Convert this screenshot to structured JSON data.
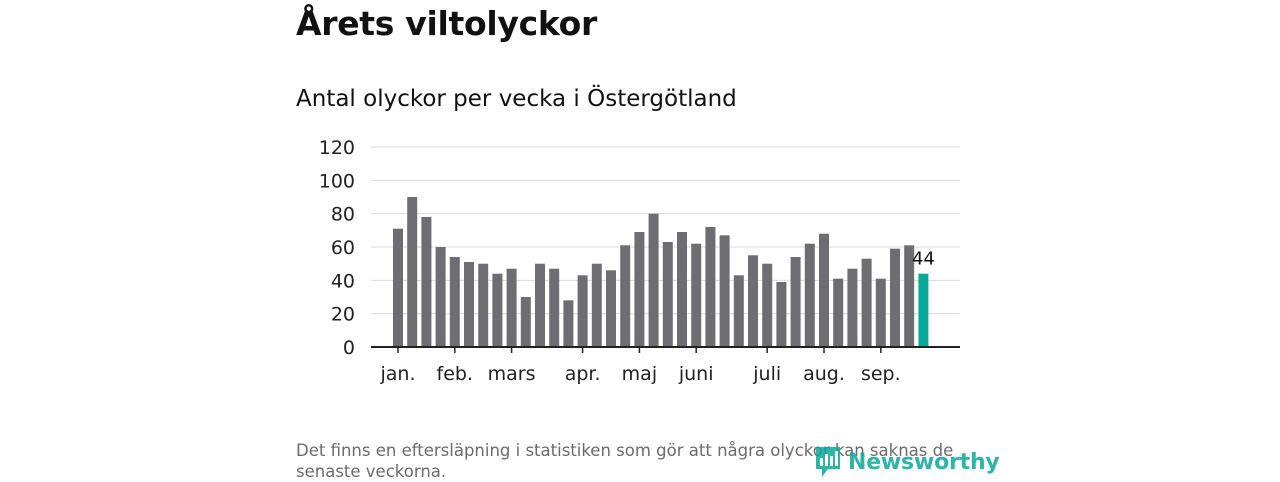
{
  "title": "Årets viltolyckor",
  "subtitle": "Antal olyckor per vecka i Östergötland",
  "footnote": "Det finns en eftersläpning i statistiken som gör att några olyckor kan saknas de senaste veckorna.",
  "brand": {
    "name": "Newsworthy"
  },
  "colors": {
    "bar": "#6e6e72",
    "highlight": "#0aa899",
    "grid": "#dcdcdc",
    "axis": "#222222"
  },
  "chart_data": {
    "type": "bar",
    "title": "Antal olyckor per vecka i Östergötland",
    "xlabel": "",
    "ylabel": "",
    "ylim": [
      0,
      120
    ],
    "yticks": [
      0,
      20,
      40,
      60,
      80,
      100,
      120
    ],
    "grid": true,
    "month_labels": [
      {
        "label": "jan.",
        "week": 1
      },
      {
        "label": "feb.",
        "week": 5
      },
      {
        "label": "mars",
        "week": 9
      },
      {
        "label": "apr.",
        "week": 14
      },
      {
        "label": "maj",
        "week": 18
      },
      {
        "label": "juni",
        "week": 22
      },
      {
        "label": "juli",
        "week": 27
      },
      {
        "label": "aug.",
        "week": 31
      },
      {
        "label": "sep.",
        "week": 35
      }
    ],
    "weeks": [
      1,
      2,
      3,
      4,
      5,
      6,
      7,
      8,
      9,
      10,
      11,
      12,
      13,
      14,
      15,
      16,
      17,
      18,
      19,
      20,
      21,
      22,
      23,
      24,
      25,
      26,
      27,
      28,
      29,
      30,
      31,
      32,
      33,
      34,
      35,
      36,
      37,
      38
    ],
    "values": [
      71,
      90,
      78,
      60,
      54,
      51,
      50,
      44,
      47,
      30,
      50,
      47,
      28,
      43,
      50,
      46,
      61,
      69,
      80,
      63,
      69,
      62,
      72,
      67,
      43,
      55,
      50,
      39,
      54,
      62,
      68,
      41,
      47,
      53,
      41,
      59,
      61,
      44
    ],
    "highlight_index": 37,
    "highlight_label": "44"
  }
}
